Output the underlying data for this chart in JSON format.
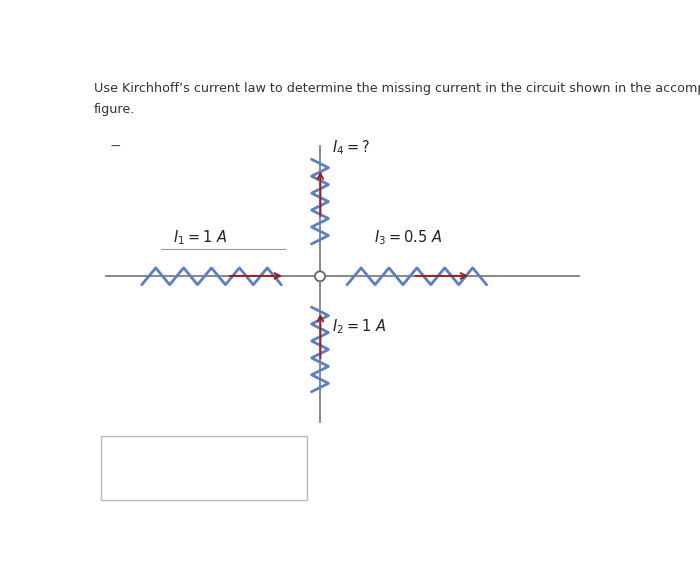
{
  "title_line1": "Use Kirchhoff’s current law to determine the missing current in the circuit shown in the accompanying",
  "title_line2": "figure.",
  "background_color": "#ffffff",
  "wire_color": "#888888",
  "resistor_color": "#5b7fc4",
  "arrow_color": "#9b2020",
  "label_color": "#222222",
  "node_color": "#ffffff",
  "node_edge_color": "#666666",
  "label_I1": "$I_1 = 1$ A",
  "label_I2": "$I_2 = 1$ A",
  "label_I3": "$I_3 = 0.5$ A",
  "label_I4": "$I_4 = ?$",
  "minus_sign": "−",
  "box_color": "#cccccc"
}
